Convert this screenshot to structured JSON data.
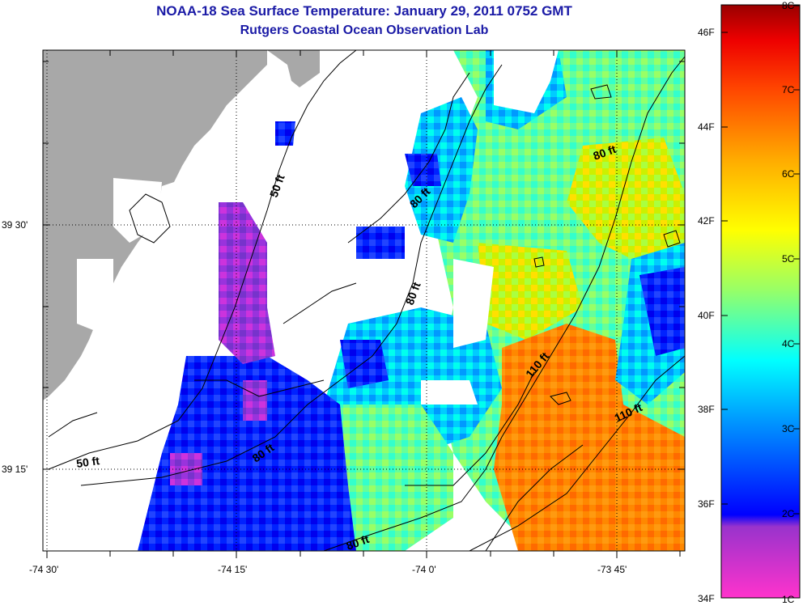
{
  "title": "NOAA-18 Sea Surface Temperature:  January 29, 2011 0752 GMT",
  "subtitle": "Rutgers Coastal Ocean Observation Lab",
  "map": {
    "lat_labels": [
      "39 30'",
      "39 15'"
    ],
    "lon_labels": [
      "-74 30'",
      "-74 15'",
      "-74 0'",
      "-73 45'"
    ],
    "land_color": "#a8a8a8",
    "contour_labels": [
      {
        "text": "50 ft",
        "name": "contour-label-50ft-north"
      },
      {
        "text": "50 ft",
        "name": "contour-label-50ft-south"
      },
      {
        "text": "80 ft",
        "name": "contour-label-80ft-a"
      },
      {
        "text": "80 ft",
        "name": "contour-label-80ft-b"
      },
      {
        "text": "80 ft",
        "name": "contour-label-80ft-c"
      },
      {
        "text": "80 ft",
        "name": "contour-label-80ft-d"
      },
      {
        "text": "80 ft",
        "name": "contour-label-80ft-e"
      },
      {
        "text": "110 ft",
        "name": "contour-label-110ft-a"
      },
      {
        "text": "110 ft",
        "name": "contour-label-110ft-b"
      }
    ]
  },
  "colorbar": {
    "fahrenheit_labels": [
      "46F",
      "44F",
      "42F",
      "40F",
      "38F",
      "36F",
      "34F"
    ],
    "celsius_labels": [
      "8C",
      "7C",
      "6C",
      "5C",
      "4C",
      "3C",
      "2C",
      "1C"
    ],
    "colors": [
      "#ff33cc",
      "#9933cc",
      "#0000ff",
      "#0099ff",
      "#00ffff",
      "#99ff66",
      "#ffff00",
      "#ffaa00",
      "#ff5500",
      "#ff0000",
      "#990000"
    ]
  }
}
